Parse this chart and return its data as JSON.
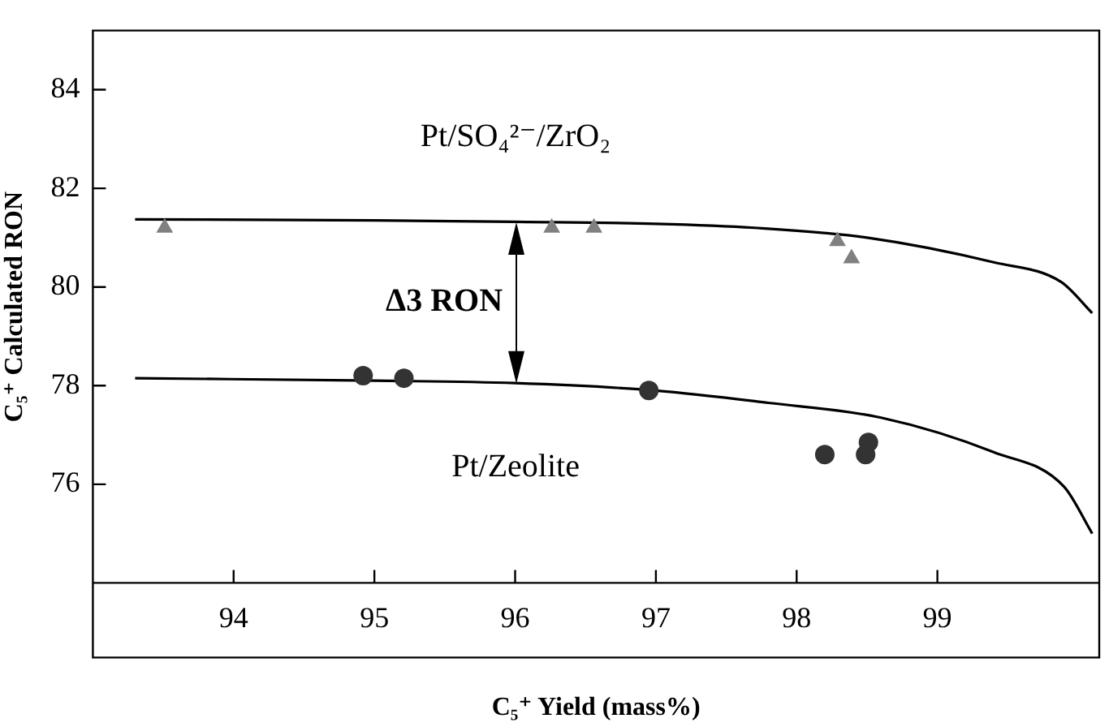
{
  "chart_data": {
    "type": "scatter",
    "xlabel": "C₅⁺ Yield (mass%)",
    "ylabel": "C₅⁺ Calculated RON",
    "xlim": [
      93,
      100.15
    ],
    "xticks": [
      94,
      95,
      96,
      97,
      98,
      99
    ],
    "ylim": [
      74,
      85.2
    ],
    "yticks": [
      76,
      78,
      80,
      82,
      84
    ],
    "grid": false,
    "legend": false,
    "series": [
      {
        "marker": "triangle",
        "color": "#808080",
        "x": [
          93.51,
          96.26,
          96.56,
          98.29,
          98.39
        ],
        "values": [
          81.2,
          81.2,
          81.2,
          80.93,
          80.58
        ]
      },
      {
        "marker": "circle",
        "color": "#333333",
        "x": [
          94.92,
          95.21,
          96.95,
          98.2,
          98.49,
          98.51
        ],
        "values": [
          78.2,
          78.15,
          77.9,
          76.6,
          76.6,
          76.85
        ]
      },
      {
        "type": "line",
        "name": "Pt/SO₄²⁻/ZrO₂",
        "marker": "none",
        "color": "#000000",
        "x": [
          93.3,
          95,
          96,
          97,
          97.7,
          98.5,
          99.4,
          99.88,
          100.1
        ],
        "values": [
          81.37,
          81.35,
          81.32,
          81.28,
          81.2,
          81.0,
          80.5,
          80.1,
          79.47
        ]
      },
      {
        "type": "line",
        "name": "Pt/Zeolite",
        "marker": "none",
        "color": "#000000",
        "x": [
          93.3,
          95,
          96,
          97,
          97.8,
          98.6,
          99.4,
          99.9,
          100.1
        ],
        "values": [
          78.15,
          78.1,
          78.05,
          77.9,
          77.65,
          77.35,
          76.65,
          75.95,
          75.0
        ]
      }
    ],
    "annotations": [
      "Δ3 RON"
    ]
  }
}
